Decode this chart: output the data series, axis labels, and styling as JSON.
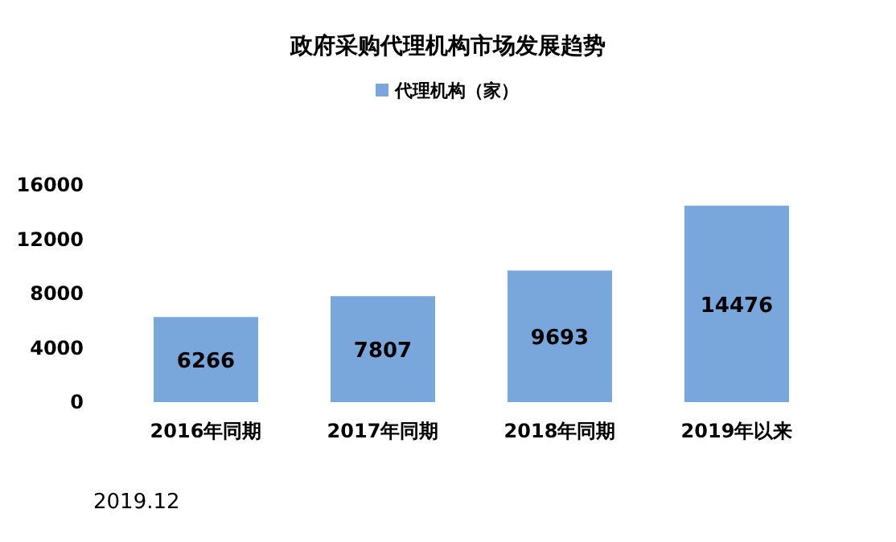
{
  "chart_data": {
    "type": "bar",
    "title": "政府采购代理机构市场发展趋势",
    "categories": [
      "2016年同期",
      "2017年同期",
      "2018年同期",
      "2019年以来"
    ],
    "series": [
      {
        "name": "代理机构（家）",
        "color": "#7aa7db",
        "values": [
          6266,
          7807,
          9693,
          14476
        ]
      }
    ],
    "ylim": [
      0,
      16000
    ],
    "yticks": [
      0,
      4000,
      8000,
      12000,
      16000
    ],
    "data_labels": true,
    "legend": "top",
    "grid": false,
    "annotations": [
      "2019.12"
    ]
  }
}
